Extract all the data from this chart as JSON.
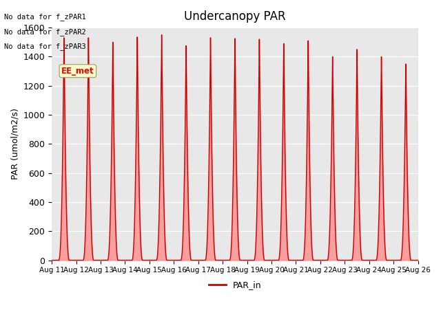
{
  "title": "Undercanopy PAR",
  "ylabel": "PAR (umol/m2/s)",
  "xlabel": "",
  "ylim": [
    0,
    1600
  ],
  "yticks": [
    0,
    200,
    400,
    600,
    800,
    1000,
    1200,
    1400,
    1600
  ],
  "xtick_labels": [
    "Aug 11",
    "Aug 12",
    "Aug 13",
    "Aug 14",
    "Aug 15",
    "Aug 16",
    "Aug 17",
    "Aug 18",
    "Aug 19",
    "Aug 20",
    "Aug 21",
    "Aug 22",
    "Aug 23",
    "Aug 24",
    "Aug 25",
    "Aug 26"
  ],
  "line_color": "#cc0000",
  "fill_color": "#ff8080",
  "bg_color": "#e8e8e8",
  "no_data_texts": [
    "No data for f_zPAR1",
    "No data for f_zPAR2",
    "No data for f_zPAR3"
  ],
  "ee_met_text": "EE_met",
  "legend_label": "PAR_in",
  "peak_values": [
    1530,
    1530,
    1500,
    1535,
    1550,
    1475,
    1530,
    1525,
    1520,
    1490,
    1510,
    1400,
    1450,
    1400,
    1350
  ],
  "n_days": 15,
  "points_per_day": 480
}
